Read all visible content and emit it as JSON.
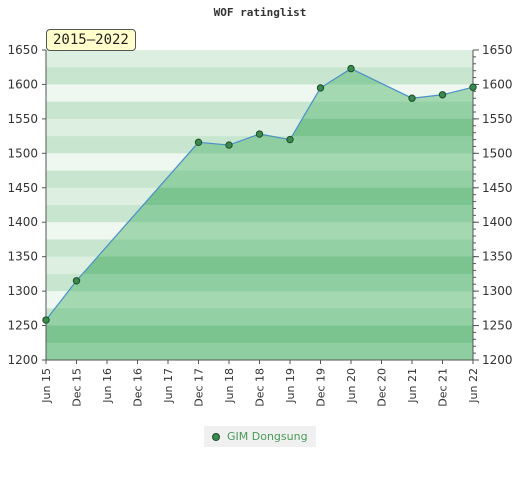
{
  "chart_data": {
    "type": "area",
    "title": "WOF ratinglist",
    "period_label": "2015–2022",
    "ylim": [
      1200,
      1650
    ],
    "yticks": [
      1200,
      1250,
      1300,
      1350,
      1400,
      1450,
      1500,
      1550,
      1600,
      1650
    ],
    "xticks": [
      "Jun 15",
      "Dec 15",
      "Jun 16",
      "Dec 16",
      "Jun 17",
      "Dec 17",
      "Jun 18",
      "Dec 18",
      "Jun 19",
      "Dec 19",
      "Jun 20",
      "Dec 20",
      "Jun 21",
      "Dec 21",
      "Jun 22"
    ],
    "series": [
      {
        "name": "GIM Dongsung",
        "points": [
          {
            "x": "Jun 15",
            "y": 1258
          },
          {
            "x": "Dec 15",
            "y": 1315
          },
          {
            "x": "Dec 17",
            "y": 1516
          },
          {
            "x": "Jun 18",
            "y": 1512
          },
          {
            "x": "Dec 18",
            "y": 1528
          },
          {
            "x": "Jun 19",
            "y": 1520
          },
          {
            "x": "Dec 19",
            "y": 1595
          },
          {
            "x": "Jun 20",
            "y": 1623
          },
          {
            "x": "Jun 21",
            "y": 1580
          },
          {
            "x": "Dec 21",
            "y": 1585
          },
          {
            "x": "Jun 22",
            "y": 1596
          }
        ]
      }
    ],
    "grid": true,
    "legend_position": "bottom-center",
    "colors": {
      "fill": "#5fb06e",
      "line": "#4a90c8",
      "marker": "#3a8a4e"
    }
  }
}
